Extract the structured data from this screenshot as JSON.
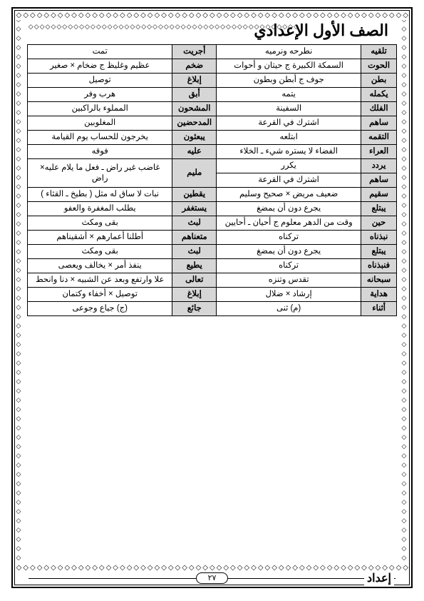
{
  "header": "الصف الأول الإعدادي",
  "footer_label": "إعداد",
  "page_number": "٢٧",
  "deco_pattern": "◇◇◇◇◇◇◇◇◇◇◇◇◇◇◇◇◇◇◇◇◇◇◇◇◇◇◇◇◇◇◇◇◇◇◇◇◇◇◇◇◇◇◇◇◇◇◇◇◇◇◇◇◇◇◇◇◇◇◇◇◇◇◇◇◇◇◇◇◇◇◇◇◇◇◇◇◇◇◇◇◇◇◇◇◇◇◇◇◇◇◇◇◇◇◇◇◇◇◇◇",
  "rows": [
    {
      "t1": "تلقيه",
      "d1": "نطرحه ونرميه",
      "t2": "أجريت",
      "d2": "تمت"
    },
    {
      "t1": "الحوت",
      "d1": "السمكة الكبيرة ج حيتان و أحوات",
      "t2": "ضخم",
      "d2": "عظيم وغليظ ج ضخام × صغير"
    },
    {
      "t1": "بطن",
      "d1": "جوف ج أبطن وبطون",
      "t2": "إبلاغ",
      "d2": "توصيل"
    },
    {
      "t1": "يكمله",
      "d1": "يتمه",
      "t2": "أبق",
      "d2": "هرب وفر"
    },
    {
      "t1": "الفلك",
      "d1": "السفينة",
      "t2": "المشحون",
      "d2": "المملوء بالراكبين"
    },
    {
      "t1": "ساهم",
      "d1": "اشترك في القرعة",
      "t2": "المدحضين",
      "d2": "المغلوبين"
    },
    {
      "t1": "التقمه",
      "d1": "ابتلعه",
      "t2": "يبعثون",
      "d2": "يخرجون للحساب يوم القيامة"
    },
    {
      "t1": "العراء",
      "d1": "الفضاء لا يستره شيء ـ الخلاء",
      "t2": "عليه",
      "d2": "فوقه"
    },
    {
      "t1": "يردد",
      "d1": "يكرر",
      "t2": "مليم",
      "d2": "غاضب غير راض ـ فعل ما يلام عليه× راض"
    },
    {
      "t1": "ساهم",
      "d1": "اشترك في القرعة",
      "t2": "",
      "d2": ""
    },
    {
      "t1": "سقيم",
      "d1": "ضعيف مريض × صحيح وسليم",
      "t2": "يقطين",
      "d2": "نبات لا ساق له مثل ( بطيخ ـ القثاء )"
    },
    {
      "t1": "يبتلع",
      "d1": "يجرع دون أن يمضغ",
      "t2": "يستغفر",
      "d2": "يطلب المغفرة والعفو"
    },
    {
      "t1": "حين",
      "d1": "وقت من الدهر معلوم ج أحيان ـ أحايين",
      "t2": "لبث",
      "d2": "بقى ومكث"
    },
    {
      "t1": "نبذناه",
      "d1": "تركناه",
      "t2": "متعناهم",
      "d2": "أطلنا أعمارهم × أشقيناهم"
    },
    {
      "t1": "يبتلع",
      "d1": "يجرع دون أن يمضغ",
      "t2": "لبث",
      "d2": "بقى ومكث"
    },
    {
      "t1": "فنبذناه",
      "d1": "تركناه",
      "t2": "يطيع",
      "d2": "ينفذ أمر × يخالف ويعصى"
    },
    {
      "t1": "سبحانه",
      "d1": "تقدس وتنزه",
      "t2": "تعالى",
      "d2": "علا وارتفع وبعد عن الشبيه × دنا وانحط"
    },
    {
      "t1": "هداية",
      "d1": "إرشاد × ضلال",
      "t2": "إبلاغ",
      "d2": "توصيل × أخفاء وكتمان"
    },
    {
      "t1": "أثناء",
      "d1": "(م) ثنى",
      "t2": "جائع",
      "d2": "(ج) جياع وجوعى"
    }
  ],
  "table_style": {
    "term_bg": "#d6d6d6",
    "def_bg": "#ffffff",
    "border_color": "#000000",
    "font_size": 11.5
  }
}
